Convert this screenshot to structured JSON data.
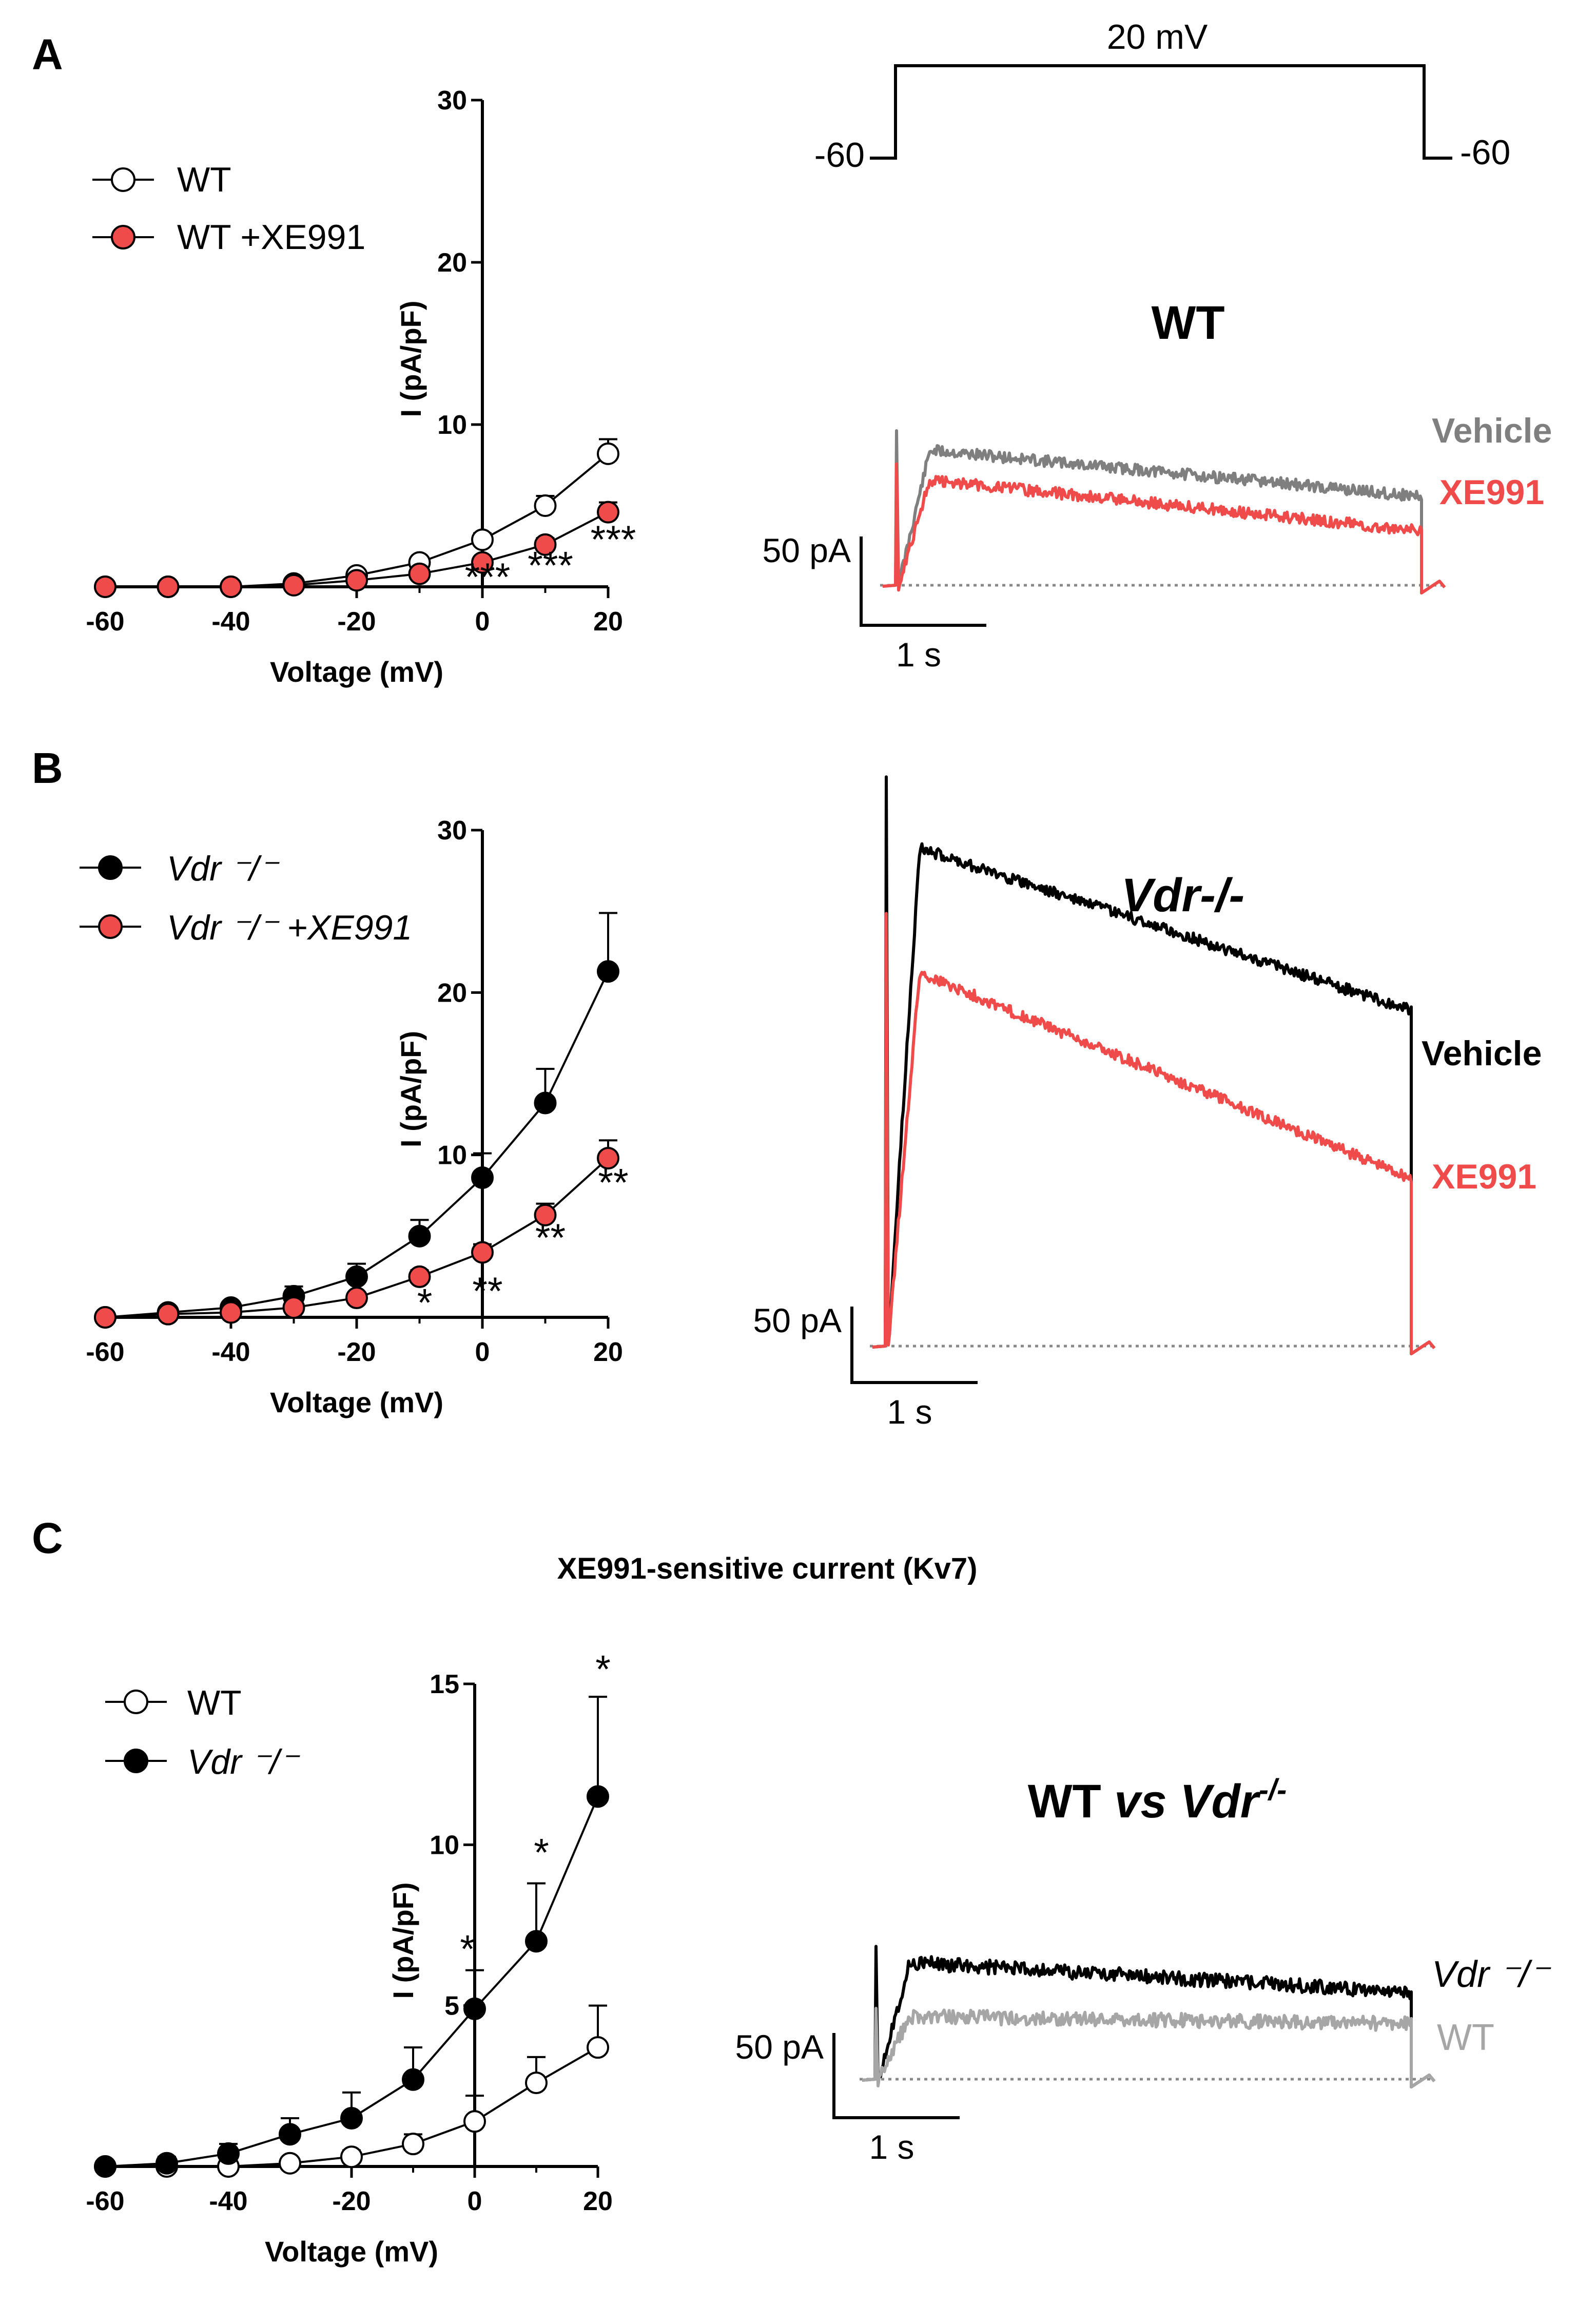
{
  "panel_labels": [
    "A",
    "B",
    "C"
  ],
  "protocol": {
    "step_label": "20 mV",
    "hold_left": "-60",
    "hold_right": "-60"
  },
  "chart_data": [
    {
      "id": "A-iv",
      "type": "line",
      "title": "",
      "xlabel": "Voltage (mV)",
      "ylabel": "I (pA/pF)",
      "xlim": [
        -60,
        20
      ],
      "ylim": [
        0,
        30
      ],
      "xticks": [
        -60,
        -40,
        -20,
        0,
        20
      ],
      "yticks": [
        10,
        20,
        30
      ],
      "x": [
        -60,
        -50,
        -40,
        -30,
        -20,
        -10,
        0,
        10,
        20
      ],
      "series": [
        {
          "name": "WT",
          "marker": "open",
          "color": "#ffffff",
          "values": [
            0,
            0,
            0,
            0.2,
            0.7,
            1.5,
            2.9,
            5.0,
            8.2
          ],
          "errors": [
            0,
            0,
            0,
            0.1,
            0.2,
            0.3,
            0.4,
            0.6,
            0.9
          ]
        },
        {
          "name": "WT +XE991",
          "marker": "filled",
          "color": "#ef4b4b",
          "values": [
            0,
            0,
            0,
            0.1,
            0.4,
            0.8,
            1.5,
            2.6,
            4.6
          ],
          "errors": [
            0,
            0,
            0,
            0.05,
            0.1,
            0.2,
            0.3,
            0.4,
            0.6
          ]
        }
      ],
      "annotations": [
        {
          "x": 0,
          "y": 0.1,
          "text": "***"
        },
        {
          "x": 10,
          "y": 0.8,
          "text": "***"
        },
        {
          "x": 20,
          "y": 2.4,
          "text": "***"
        }
      ]
    },
    {
      "id": "B-iv",
      "type": "line",
      "title": "",
      "xlabel": "Voltage (mV)",
      "ylabel": "I (pA/pF)",
      "xlim": [
        -60,
        20
      ],
      "ylim": [
        0,
        30
      ],
      "xticks": [
        -60,
        -40,
        -20,
        0,
        20
      ],
      "yticks": [
        10,
        20,
        30
      ],
      "x": [
        -60,
        -50,
        -40,
        -30,
        -20,
        -10,
        0,
        10,
        20
      ],
      "series": [
        {
          "name": "Vdr ⁻/⁻",
          "marker": "filled",
          "color": "#000000",
          "values": [
            0,
            0.3,
            0.6,
            1.3,
            2.5,
            5.0,
            8.6,
            13.2,
            21.3
          ],
          "errors": [
            0,
            0.1,
            0.3,
            0.6,
            0.8,
            1.0,
            1.5,
            2.1,
            3.6
          ]
        },
        {
          "name": "Vdr ⁻/⁻ +XE991",
          "marker": "filled",
          "color": "#ef4b4b",
          "values": [
            0,
            0.2,
            0.3,
            0.6,
            1.2,
            2.5,
            4.0,
            6.3,
            9.8
          ],
          "errors": [
            0,
            0.1,
            0.1,
            0.2,
            0.3,
            0.4,
            0.5,
            0.7,
            1.1
          ]
        }
      ],
      "annotations": [
        {
          "x": -10,
          "y": 0.4,
          "text": "*"
        },
        {
          "x": 0,
          "y": 1.1,
          "text": "**"
        },
        {
          "x": 10,
          "y": 4.4,
          "text": "**"
        },
        {
          "x": 20,
          "y": 7.8,
          "text": "**"
        }
      ]
    },
    {
      "id": "C-iv",
      "type": "line",
      "title": "XE991-sensitive current (Kv7)",
      "xlabel": "Voltage (mV)",
      "ylabel": "I (pA/pF)",
      "xlim": [
        -60,
        20
      ],
      "ylim": [
        0,
        15
      ],
      "xticks": [
        -60,
        -40,
        -20,
        0,
        20
      ],
      "yticks": [
        5,
        10,
        15
      ],
      "x": [
        -60,
        -50,
        -40,
        -30,
        -20,
        -10,
        0,
        10,
        20
      ],
      "series": [
        {
          "name": "WT",
          "marker": "open",
          "color": "#ffffff",
          "values": [
            0,
            0,
            0,
            0.1,
            0.3,
            0.7,
            1.4,
            2.6,
            3.7
          ],
          "errors": [
            0,
            0.1,
            0.1,
            0.1,
            0.2,
            0.3,
            0.8,
            0.8,
            1.3
          ]
        },
        {
          "name": "Vdr ⁻/⁻",
          "marker": "filled",
          "color": "#000000",
          "values": [
            0,
            0.1,
            0.4,
            1.0,
            1.5,
            2.7,
            4.9,
            7.0,
            11.5
          ],
          "errors": [
            0,
            0.2,
            0.3,
            0.5,
            0.8,
            1.0,
            1.2,
            1.8,
            3.1
          ]
        }
      ],
      "annotations": [
        {
          "x": -2,
          "y": 6.5,
          "text": "*"
        },
        {
          "x": 10,
          "y": 9.5,
          "text": "*"
        },
        {
          "x": 20,
          "y": 15.2,
          "text": "*"
        }
      ]
    }
  ],
  "traces": [
    {
      "id": "A-trace",
      "title": "WT",
      "scale_current": "50 pA",
      "scale_time": "1 s",
      "series": [
        {
          "name": "Vehicle",
          "color": "#7f7f7f",
          "level_start": 28,
          "level_end": 18
        },
        {
          "name": "XE991",
          "color": "#ef4b4b",
          "level_start": 22,
          "level_end": 11
        }
      ]
    },
    {
      "id": "B-trace",
      "title": "Vdr-/-",
      "scale_current": "50 pA",
      "scale_time": "1 s",
      "series": [
        {
          "name": "Vehicle",
          "color": "#000000",
          "level_start": 100,
          "level_end": 66
        },
        {
          "name": "XE991",
          "color": "#ef4b4b",
          "level_start": 76,
          "level_end": 33
        }
      ]
    },
    {
      "id": "C-trace",
      "title": "WT vs Vdr-/-",
      "title_parts": {
        "plain": "WT ",
        "italic_vs": "vs",
        "gene": " Vdr",
        "sup": "-/-"
      },
      "scale_current": "50 pA",
      "scale_time": "1 s",
      "series": [
        {
          "name": "Vdr ⁻/⁻",
          "color": "#000000",
          "level_start": 30,
          "level_end": 22
        },
        {
          "name": "WT",
          "color": "#a6a6a6",
          "level_start": 16,
          "level_end": 14
        }
      ]
    }
  ]
}
